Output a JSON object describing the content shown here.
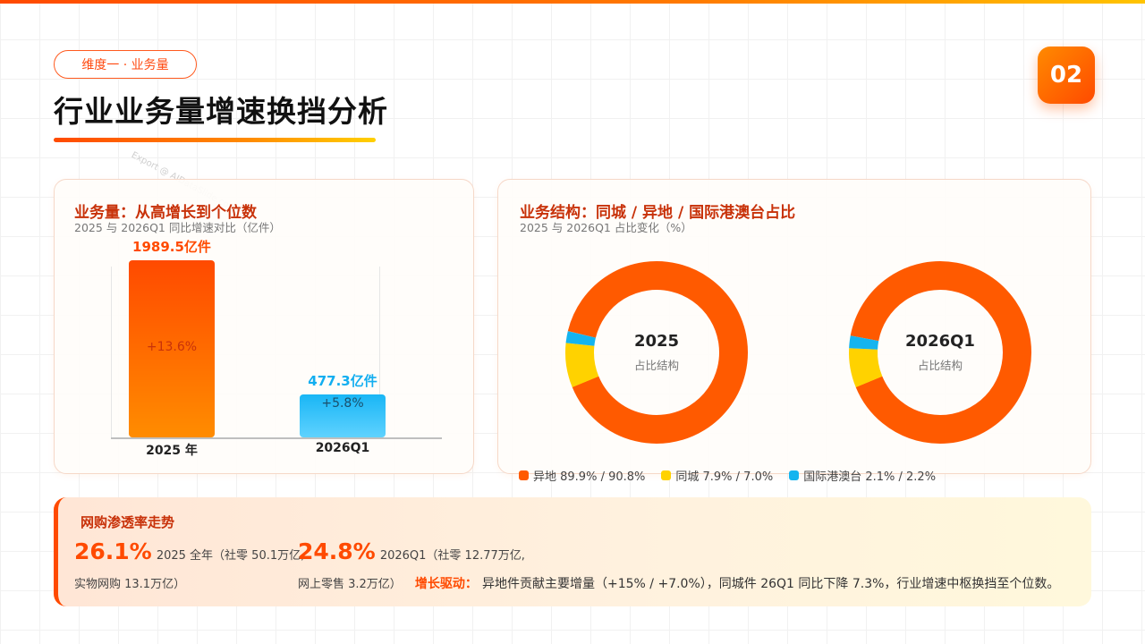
{
  "header": {
    "tag": "维度一 · 业务量",
    "title": "行业业务量增速换挡分析",
    "page_number": "02",
    "watermark": "Export @ AIDataSlide.com"
  },
  "volume_card": {
    "title": "业务量：从高增长到个位数",
    "subtitle": "2025 与 2026Q1 同比增速对比（亿件）"
  },
  "structure_card": {
    "title": "业务结构：同城 / 异地 / 国际港澳台占比",
    "subtitle": "2025 与 2026Q1 占比变化（%）"
  },
  "chart_data": [
    {
      "type": "bar",
      "categories": [
        "2025 年",
        "2026Q1"
      ],
      "values": [
        1989.5,
        477.3
      ],
      "value_labels": [
        "1989.5亿件",
        "477.3亿件"
      ],
      "growth_labels": [
        "+13.6%",
        "+5.8%"
      ],
      "colors": [
        "#ff4a00",
        "#19b6f5"
      ],
      "unit": "亿件"
    },
    {
      "type": "pie",
      "variant": "donut",
      "charts": [
        {
          "center_title": "2025",
          "center_label": "占比结构",
          "values": [
            89.9,
            7.9,
            2.1
          ]
        },
        {
          "center_title": "2026Q1",
          "center_label": "占比结构",
          "values": [
            90.8,
            7.0,
            2.2
          ]
        }
      ],
      "series_names": [
        "异地",
        "同城",
        "国际港澳台"
      ],
      "colors": [
        "#ff5a00",
        "#ffd200",
        "#14b4ef"
      ],
      "legend": [
        "异地 89.9% / 90.8%",
        "同城 7.9% / 7.0%",
        "国际港澳台 2.1% / 2.2%"
      ],
      "legend_position": "bottom"
    }
  ],
  "penetration": {
    "title": "网购渗透率走势",
    "rate_2025": "26.1%",
    "desc_2025_line1": "2025 全年（社零 50.1万亿,",
    "desc_2025_line2": "实物网购 13.1万亿）",
    "rate_2026": "24.8%",
    "desc_2026_line1": "2026Q1（社零 12.77万亿,",
    "desc_2026_line2": "网上零售 3.2万亿）",
    "driver_label": "增长驱动：",
    "driver_text": "异地件贡献主要增量（+15% / +7.0%），同城件 26Q1 同比下降 7.3%，行业增速中枢换挡至个位数。"
  }
}
